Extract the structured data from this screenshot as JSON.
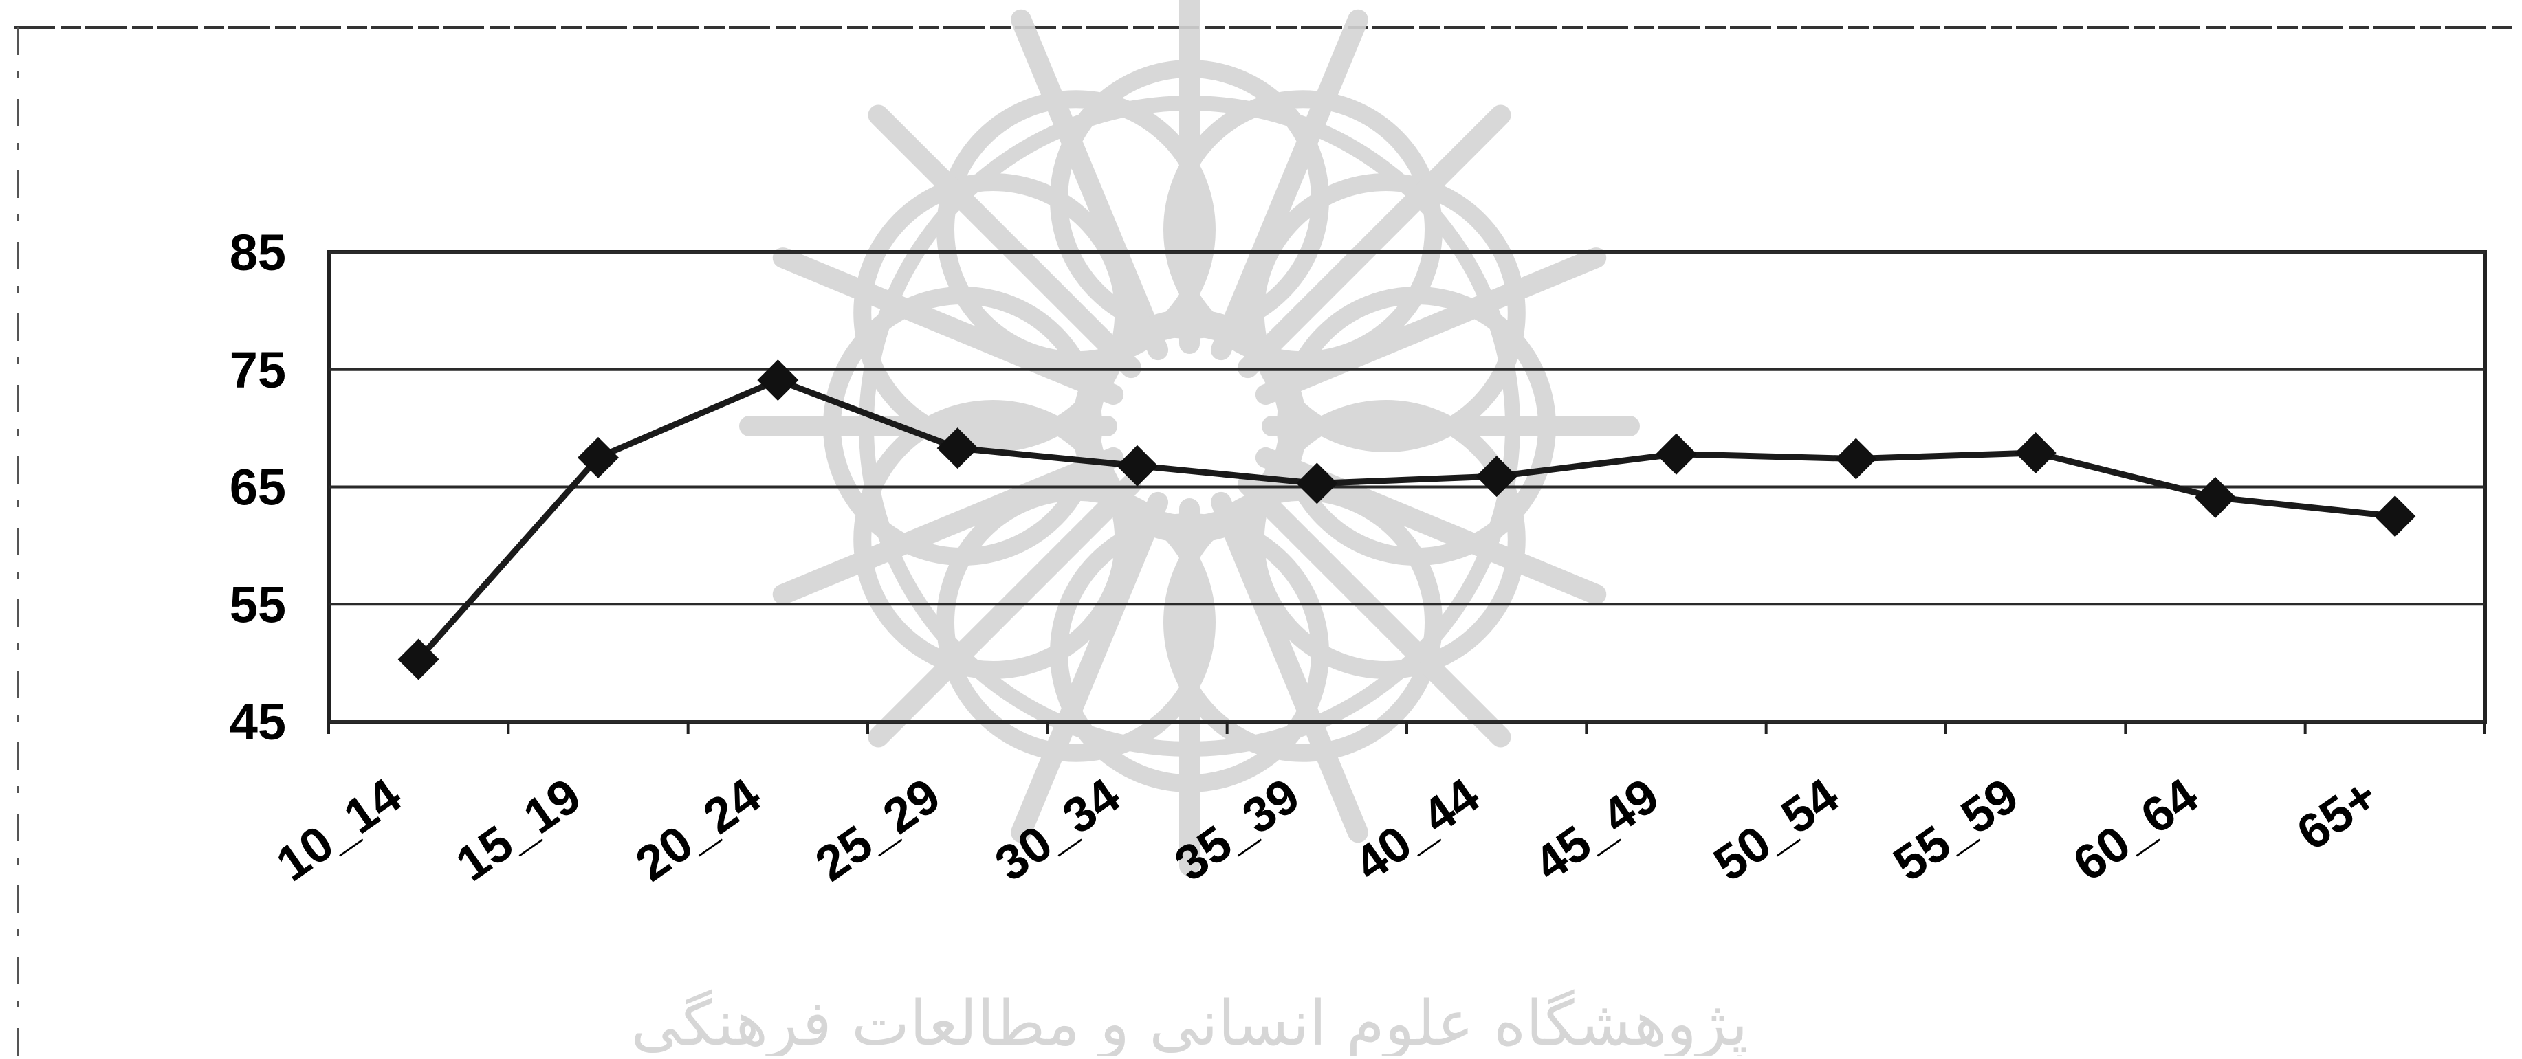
{
  "colors": {
    "line": "#1a1a1a",
    "marker": "#111111",
    "gridline": "#2a2a2a",
    "frame": "#222222",
    "watermark": "#d4d4d4",
    "background": "#ffffff"
  },
  "watermark": {
    "icon": "rosette-emblem-icon",
    "text": "پژوهشگاه علوم انسانی و مطالعات فرهنگی"
  },
  "chart_data": {
    "type": "line",
    "title": "",
    "xlabel": "",
    "ylabel": "",
    "categories": [
      "10_14",
      "15_19",
      "20_24",
      "25_29",
      "30_34",
      "35_39",
      "40_44",
      "45_49",
      "50_54",
      "55_59",
      "60_64",
      "65+"
    ],
    "series": [
      {
        "marker": "diamond",
        "values": [
          50.3,
          67.5,
          74.1,
          68.3,
          66.8,
          65.3,
          65.9,
          67.8,
          67.4,
          67.9,
          64.1,
          62.5
        ]
      }
    ],
    "ylim": [
      45,
      85
    ],
    "yticks": [
      45,
      55,
      65,
      75,
      85
    ],
    "ytick_labels": [
      "45",
      "55",
      "65",
      "75",
      "85"
    ],
    "grid": true,
    "legend": "none"
  }
}
